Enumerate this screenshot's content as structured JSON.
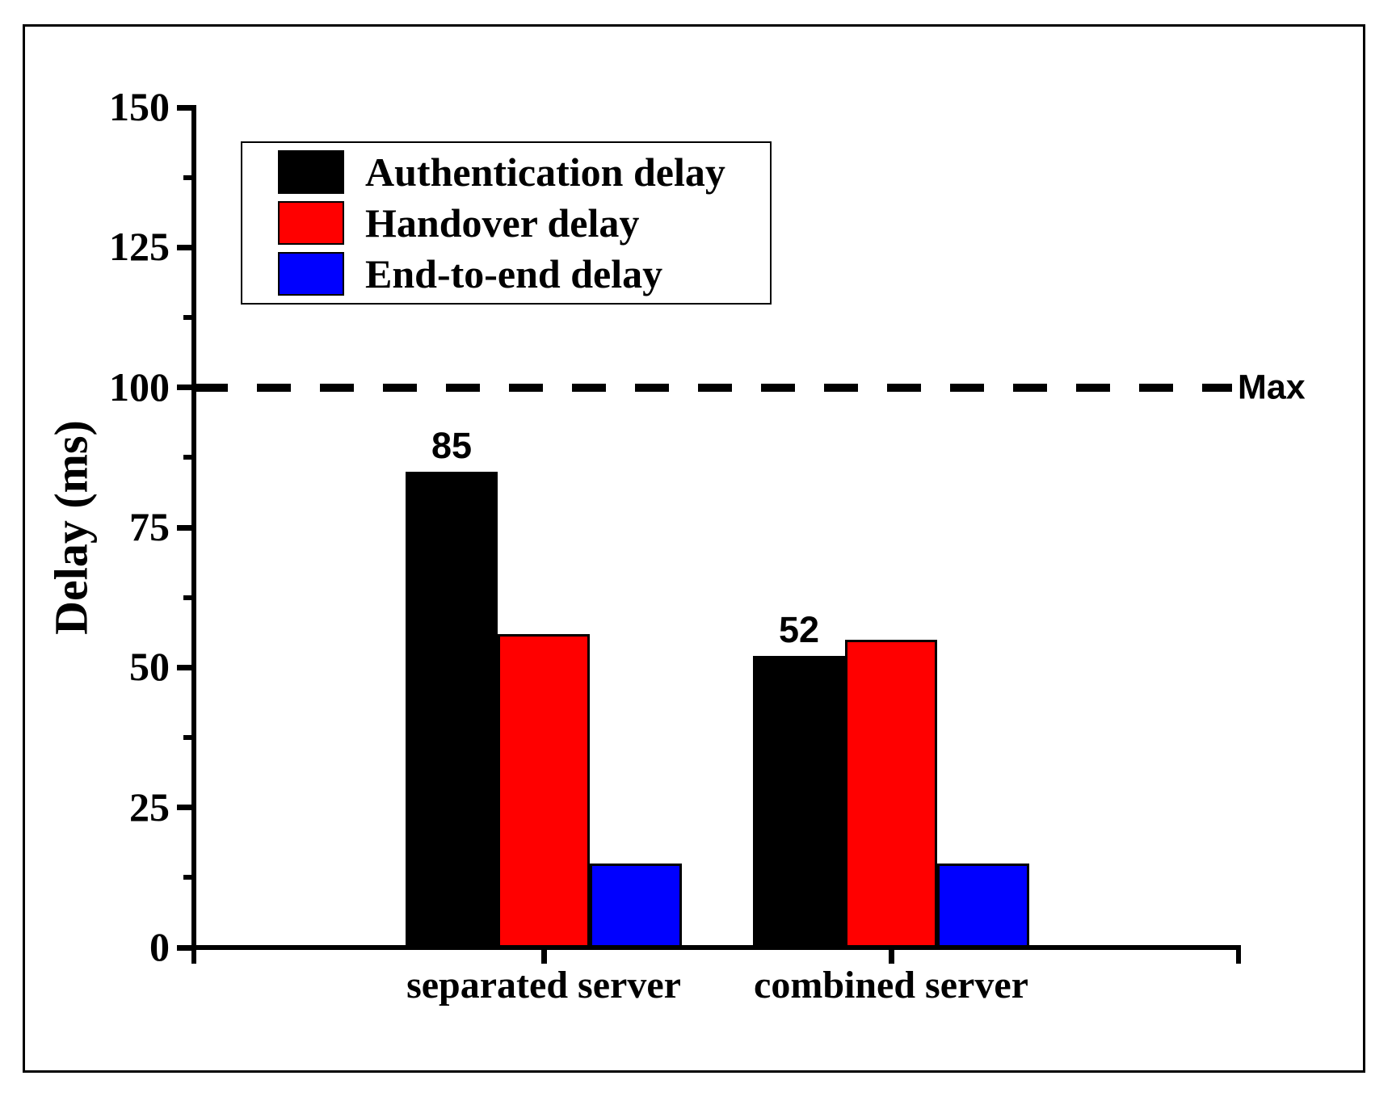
{
  "chart_data": {
    "type": "bar",
    "title": "",
    "categories": [
      "separated server",
      "combined server"
    ],
    "series": [
      {
        "name": "Authentication delay",
        "color": "#000000",
        "values": [
          85,
          52
        ],
        "value_labels": [
          "85",
          "52"
        ]
      },
      {
        "name": "Handover delay",
        "color": "#ff0000",
        "values": [
          56,
          55
        ],
        "value_labels": [
          null,
          null
        ]
      },
      {
        "name": "End-to-end delay",
        "color": "#0000ff",
        "values": [
          15,
          15
        ],
        "value_labels": [
          null,
          null
        ]
      }
    ],
    "xlabel": "",
    "ylabel": "Delay (ms)",
    "ylim": [
      0,
      150
    ],
    "ytick_interval": 25,
    "ytick_minor_interval": 12.5,
    "ytick_labels": [
      "0",
      "25",
      "50",
      "75",
      "100",
      "125",
      "150"
    ],
    "grid": false,
    "legend_position": "upper-left",
    "reference_line": {
      "value": 100,
      "label": "Max",
      "style": "dashed",
      "color": "#000000"
    },
    "axis_color": "#000000",
    "background": "#ffffff"
  }
}
